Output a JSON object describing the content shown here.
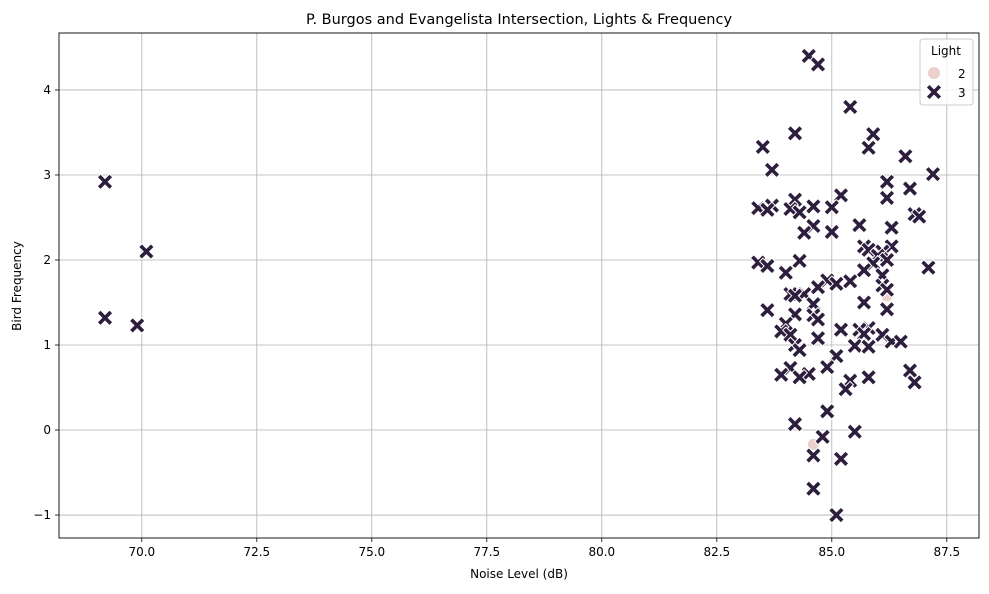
{
  "chart_data": {
    "type": "scatter",
    "title": "P. Burgos and Evangelista Intersection, Lights & Frequency",
    "xlabel": "Noise Level (dB)",
    "ylabel": "Bird Frequency",
    "xlim": [
      68.2,
      88.2
    ],
    "ylim": [
      -1.27,
      4.67
    ],
    "xticks": [
      70.0,
      72.5,
      75.0,
      77.5,
      80.0,
      82.5,
      85.0,
      87.5
    ],
    "xtick_labels": [
      "70.0",
      "72.5",
      "75.0",
      "77.5",
      "80.0",
      "82.5",
      "85.0",
      "87.5"
    ],
    "yticks": [
      -1,
      0,
      1,
      2,
      3,
      4
    ],
    "ytick_labels": [
      "−1",
      "0",
      "1",
      "2",
      "3",
      "4"
    ],
    "grid": true,
    "legend": {
      "title": "Light",
      "placement": "top-right",
      "entries": [
        {
          "label": "2",
          "marker": "circle",
          "color": "#ebd0cc"
        },
        {
          "label": "3",
          "marker": "x",
          "color": "#2d1e3e"
        }
      ]
    },
    "series": [
      {
        "name": "2",
        "marker": "circle",
        "color": "#ebd0cc",
        "points": [
          {
            "x": 84.6,
            "y": -0.17
          },
          {
            "x": 86.2,
            "y": 1.58
          }
        ]
      },
      {
        "name": "3",
        "marker": "x",
        "color": "#2d1e3e",
        "points": [
          {
            "x": 69.2,
            "y": 2.92
          },
          {
            "x": 69.2,
            "y": 1.32
          },
          {
            "x": 69.9,
            "y": 1.23
          },
          {
            "x": 70.1,
            "y": 2.1
          },
          {
            "x": 84.5,
            "y": 4.4
          },
          {
            "x": 84.7,
            "y": 4.3
          },
          {
            "x": 85.4,
            "y": 3.8
          },
          {
            "x": 84.2,
            "y": 3.49
          },
          {
            "x": 85.9,
            "y": 3.48
          },
          {
            "x": 83.5,
            "y": 3.33
          },
          {
            "x": 85.8,
            "y": 3.32
          },
          {
            "x": 86.6,
            "y": 3.22
          },
          {
            "x": 83.7,
            "y": 3.06
          },
          {
            "x": 87.2,
            "y": 3.01
          },
          {
            "x": 86.2,
            "y": 2.92
          },
          {
            "x": 86.7,
            "y": 2.84
          },
          {
            "x": 85.2,
            "y": 2.76
          },
          {
            "x": 86.2,
            "y": 2.73
          },
          {
            "x": 84.2,
            "y": 2.71
          },
          {
            "x": 83.7,
            "y": 2.64
          },
          {
            "x": 84.6,
            "y": 2.63
          },
          {
            "x": 85.0,
            "y": 2.62
          },
          {
            "x": 83.4,
            "y": 2.61
          },
          {
            "x": 84.1,
            "y": 2.6
          },
          {
            "x": 83.6,
            "y": 2.59
          },
          {
            "x": 84.3,
            "y": 2.56
          },
          {
            "x": 86.8,
            "y": 2.54
          },
          {
            "x": 86.9,
            "y": 2.51
          },
          {
            "x": 85.6,
            "y": 2.41
          },
          {
            "x": 84.6,
            "y": 2.4
          },
          {
            "x": 86.3,
            "y": 2.38
          },
          {
            "x": 85.0,
            "y": 2.33
          },
          {
            "x": 84.4,
            "y": 2.32
          },
          {
            "x": 85.7,
            "y": 2.16
          },
          {
            "x": 86.3,
            "y": 2.16
          },
          {
            "x": 85.8,
            "y": 2.12
          },
          {
            "x": 86.1,
            "y": 2.1
          },
          {
            "x": 86.0,
            "y": 2.05
          },
          {
            "x": 86.2,
            "y": 2.0
          },
          {
            "x": 84.3,
            "y": 1.99
          },
          {
            "x": 83.4,
            "y": 1.97
          },
          {
            "x": 85.9,
            "y": 1.96
          },
          {
            "x": 83.6,
            "y": 1.93
          },
          {
            "x": 87.1,
            "y": 1.91
          },
          {
            "x": 85.7,
            "y": 1.88
          },
          {
            "x": 84.0,
            "y": 1.85
          },
          {
            "x": 86.1,
            "y": 1.82
          },
          {
            "x": 84.9,
            "y": 1.76
          },
          {
            "x": 85.4,
            "y": 1.75
          },
          {
            "x": 85.1,
            "y": 1.72
          },
          {
            "x": 86.1,
            "y": 1.7
          },
          {
            "x": 84.7,
            "y": 1.68
          },
          {
            "x": 86.2,
            "y": 1.65
          },
          {
            "x": 84.1,
            "y": 1.6
          },
          {
            "x": 84.4,
            "y": 1.6
          },
          {
            "x": 84.2,
            "y": 1.58
          },
          {
            "x": 85.7,
            "y": 1.5
          },
          {
            "x": 84.6,
            "y": 1.48
          },
          {
            "x": 86.2,
            "y": 1.42
          },
          {
            "x": 83.6,
            "y": 1.41
          },
          {
            "x": 84.6,
            "y": 1.35
          },
          {
            "x": 84.2,
            "y": 1.36
          },
          {
            "x": 84.7,
            "y": 1.3
          },
          {
            "x": 84.0,
            "y": 1.25
          },
          {
            "x": 85.8,
            "y": 1.2
          },
          {
            "x": 85.6,
            "y": 1.18
          },
          {
            "x": 85.2,
            "y": 1.18
          },
          {
            "x": 83.9,
            "y": 1.16
          },
          {
            "x": 85.7,
            "y": 1.13
          },
          {
            "x": 86.1,
            "y": 1.12
          },
          {
            "x": 84.1,
            "y": 1.12
          },
          {
            "x": 84.7,
            "y": 1.08
          },
          {
            "x": 86.3,
            "y": 1.04
          },
          {
            "x": 86.5,
            "y": 1.04
          },
          {
            "x": 84.2,
            "y": 1.0
          },
          {
            "x": 85.5,
            "y": 0.99
          },
          {
            "x": 85.8,
            "y": 0.98
          },
          {
            "x": 84.3,
            "y": 0.94
          },
          {
            "x": 85.1,
            "y": 0.87
          },
          {
            "x": 84.9,
            "y": 0.74
          },
          {
            "x": 84.1,
            "y": 0.73
          },
          {
            "x": 86.7,
            "y": 0.7
          },
          {
            "x": 83.9,
            "y": 0.65
          },
          {
            "x": 84.5,
            "y": 0.66
          },
          {
            "x": 84.3,
            "y": 0.62
          },
          {
            "x": 85.8,
            "y": 0.62
          },
          {
            "x": 85.4,
            "y": 0.58
          },
          {
            "x": 86.8,
            "y": 0.56
          },
          {
            "x": 85.3,
            "y": 0.48
          },
          {
            "x": 84.9,
            "y": 0.22
          },
          {
            "x": 84.2,
            "y": 0.07
          },
          {
            "x": 84.8,
            "y": -0.08
          },
          {
            "x": 85.5,
            "y": -0.02
          },
          {
            "x": 84.6,
            "y": -0.3
          },
          {
            "x": 85.2,
            "y": -0.34
          },
          {
            "x": 84.6,
            "y": -0.69
          },
          {
            "x": 85.1,
            "y": -1.0
          }
        ]
      }
    ]
  }
}
